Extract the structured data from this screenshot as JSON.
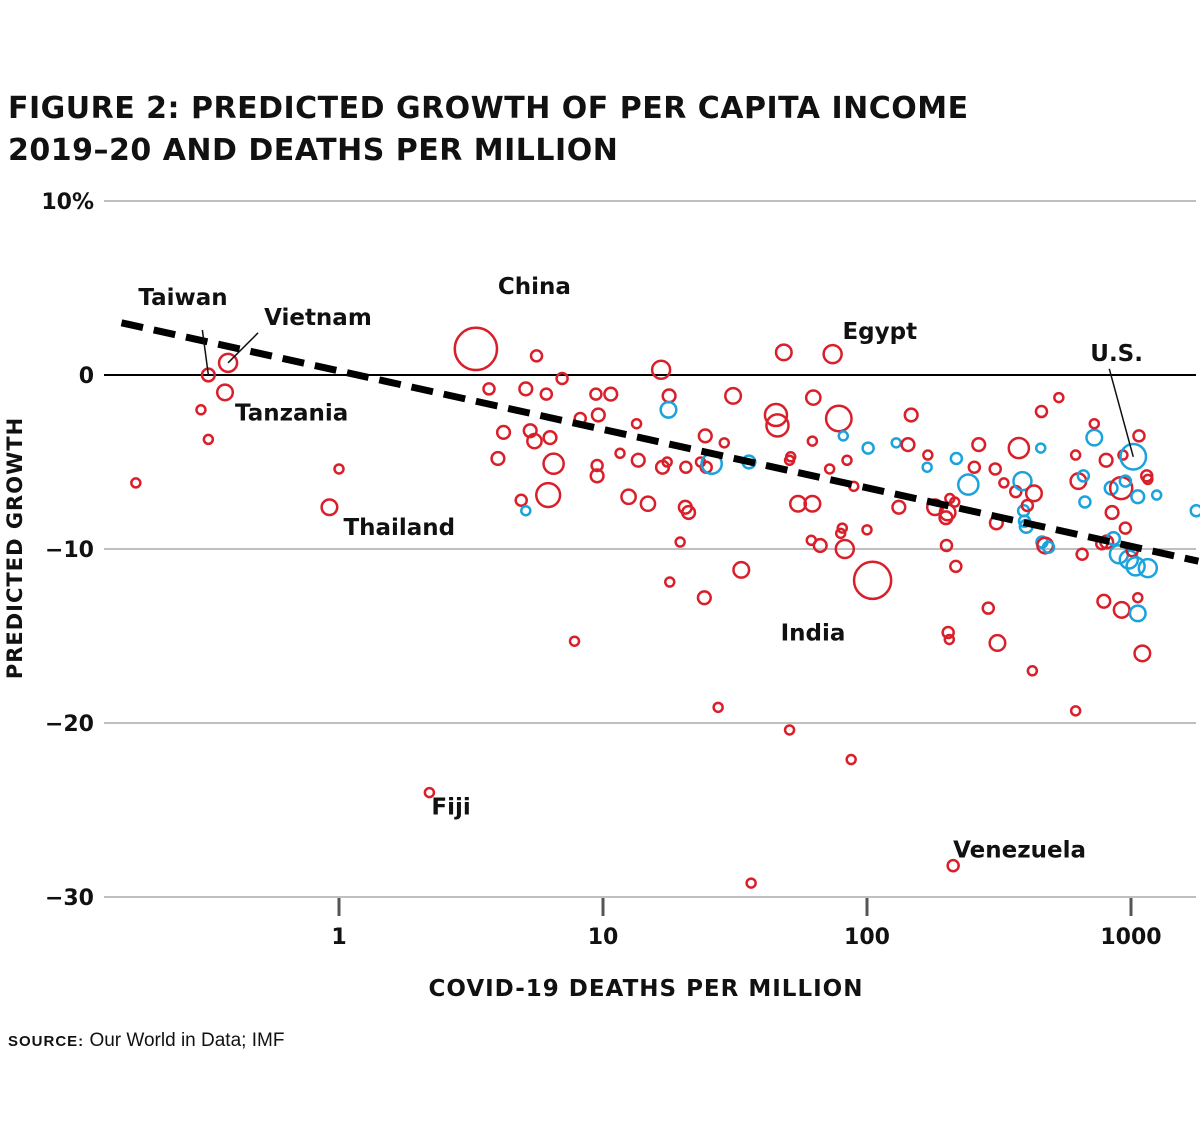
{
  "header": {
    "title_line1": "FIGURE 2: PREDICTED GROWTH OF PER CAPITA INCOME",
    "title_line2": "2019–20 AND DEATHS PER MILLION"
  },
  "footer": {
    "source_label": "SOURCE:",
    "source_text": "Our World in Data; IMF"
  },
  "chart_data": {
    "type": "scatter",
    "title": "FIGURE 2: PREDICTED GROWTH OF PER CAPITA INCOME 2019–20 AND DEATHS PER MILLION",
    "xlabel": "COVID-19 DEATHS PER MILLION",
    "ylabel": "PREDICTED GROWTH",
    "x_scale": "log",
    "xlim": [
      0.14,
      1800
    ],
    "ylim": [
      -30,
      10
    ],
    "x_ticks": [
      1,
      10,
      100,
      1000
    ],
    "x_tick_labels": [
      "1",
      "10",
      "100",
      "1000"
    ],
    "y_ticks": [
      10,
      0,
      -10,
      -20,
      -30
    ],
    "y_tick_labels": [
      "10%",
      "0",
      "−10",
      "−20",
      "−30"
    ],
    "grid": "horizontal",
    "colors": {
      "red": "#d9202a",
      "blue": "#1aa3dd",
      "trend": "#000000",
      "grid": "#999999"
    },
    "trend_line": {
      "style": "dashed",
      "from": [
        0.15,
        3.0
      ],
      "to": [
        1800,
        -10.7
      ]
    },
    "annotations": [
      {
        "label": "Taiwan",
        "x": 0.32,
        "y": 0.0
      },
      {
        "label": "Vietnam",
        "x": 0.38,
        "y": 0.7
      },
      {
        "label": "Tanzania",
        "x": 0.37,
        "y": -1.0
      },
      {
        "label": "Thailand",
        "x": 0.92,
        "y": -7.6
      },
      {
        "label": "China",
        "x": 3.3,
        "y": 1.5
      },
      {
        "label": "Fiji",
        "x": 2.2,
        "y": -24.0
      },
      {
        "label": "Egypt",
        "x": 74,
        "y": 1.2
      },
      {
        "label": "India",
        "x": 105,
        "y": -11.8
      },
      {
        "label": "Venezuela",
        "x": 212,
        "y": -28.2
      },
      {
        "label": "U.S.",
        "x": 1020,
        "y": -4.7
      }
    ],
    "points": [
      {
        "x": 0.17,
        "y": -6.2,
        "size": 1,
        "group": "red"
      },
      {
        "x": 0.3,
        "y": -2.0,
        "size": 1,
        "group": "red"
      },
      {
        "x": 0.32,
        "y": -3.7,
        "size": 1,
        "group": "red"
      },
      {
        "x": 0.32,
        "y": 0.0,
        "size": 2,
        "group": "red"
      },
      {
        "x": 0.38,
        "y": 0.7,
        "size": 4,
        "group": "red"
      },
      {
        "x": 0.37,
        "y": -1.0,
        "size": 3,
        "group": "red"
      },
      {
        "x": 1.0,
        "y": -5.4,
        "size": 1,
        "group": "red"
      },
      {
        "x": 0.92,
        "y": -7.6,
        "size": 3,
        "group": "red"
      },
      {
        "x": 2.2,
        "y": -24.0,
        "size": 1,
        "group": "red"
      },
      {
        "x": 3.3,
        "y": 1.5,
        "size": 22,
        "group": "red"
      },
      {
        "x": 3.7,
        "y": -0.8,
        "size": 1.5,
        "group": "red"
      },
      {
        "x": 4.2,
        "y": -3.3,
        "size": 2,
        "group": "red"
      },
      {
        "x": 4.0,
        "y": -4.8,
        "size": 2,
        "group": "red"
      },
      {
        "x": 4.9,
        "y": -7.2,
        "size": 1.5,
        "group": "red"
      },
      {
        "x": 5.1,
        "y": -7.8,
        "size": 1,
        "group": "blue"
      },
      {
        "x": 5.1,
        "y": -0.8,
        "size": 2,
        "group": "red"
      },
      {
        "x": 5.3,
        "y": -3.2,
        "size": 2,
        "group": "red"
      },
      {
        "x": 5.5,
        "y": -3.8,
        "size": 2.5,
        "group": "red"
      },
      {
        "x": 5.6,
        "y": 1.1,
        "size": 1.5,
        "group": "red"
      },
      {
        "x": 6.1,
        "y": -1.1,
        "size": 1.5,
        "group": "red"
      },
      {
        "x": 6.3,
        "y": -3.6,
        "size": 2,
        "group": "red"
      },
      {
        "x": 6.5,
        "y": -5.1,
        "size": 5,
        "group": "red"
      },
      {
        "x": 6.2,
        "y": -6.9,
        "size": 7,
        "group": "red"
      },
      {
        "x": 7.0,
        "y": -0.2,
        "size": 1.5,
        "group": "red"
      },
      {
        "x": 7.8,
        "y": -15.3,
        "size": 1,
        "group": "red"
      },
      {
        "x": 8.2,
        "y": -2.5,
        "size": 1.5,
        "group": "red"
      },
      {
        "x": 9.4,
        "y": -1.1,
        "size": 1.5,
        "group": "red"
      },
      {
        "x": 9.6,
        "y": -2.3,
        "size": 2,
        "group": "red"
      },
      {
        "x": 9.5,
        "y": -5.2,
        "size": 1.5,
        "group": "red"
      },
      {
        "x": 9.5,
        "y": -5.8,
        "size": 2,
        "group": "red"
      },
      {
        "x": 10.7,
        "y": -1.1,
        "size": 2,
        "group": "red"
      },
      {
        "x": 11.6,
        "y": -4.5,
        "size": 1,
        "group": "red"
      },
      {
        "x": 12.5,
        "y": -7.0,
        "size": 2.5,
        "group": "red"
      },
      {
        "x": 13.4,
        "y": -2.8,
        "size": 1,
        "group": "red"
      },
      {
        "x": 13.6,
        "y": -4.9,
        "size": 2,
        "group": "red"
      },
      {
        "x": 14.8,
        "y": -7.4,
        "size": 2.5,
        "group": "red"
      },
      {
        "x": 16.6,
        "y": 0.3,
        "size": 4,
        "group": "red"
      },
      {
        "x": 16.8,
        "y": -5.3,
        "size": 2,
        "group": "red"
      },
      {
        "x": 17.8,
        "y": -1.2,
        "size": 2,
        "group": "red"
      },
      {
        "x": 17.7,
        "y": -2.0,
        "size": 3,
        "group": "blue"
      },
      {
        "x": 17.5,
        "y": -5.0,
        "size": 1,
        "group": "red"
      },
      {
        "x": 17.9,
        "y": -11.9,
        "size": 1,
        "group": "red"
      },
      {
        "x": 19.6,
        "y": -9.6,
        "size": 1,
        "group": "red"
      },
      {
        "x": 20.5,
        "y": -7.6,
        "size": 2,
        "group": "red"
      },
      {
        "x": 20.6,
        "y": -5.3,
        "size": 1.5,
        "group": "red"
      },
      {
        "x": 21.1,
        "y": -7.9,
        "size": 2,
        "group": "red"
      },
      {
        "x": 23.4,
        "y": -5.0,
        "size": 1,
        "group": "red"
      },
      {
        "x": 24.4,
        "y": -3.5,
        "size": 2,
        "group": "red"
      },
      {
        "x": 24.6,
        "y": -5.3,
        "size": 1.5,
        "group": "red"
      },
      {
        "x": 24.2,
        "y": -12.8,
        "size": 2,
        "group": "red"
      },
      {
        "x": 25.8,
        "y": -5.1,
        "size": 5,
        "group": "blue"
      },
      {
        "x": 27.3,
        "y": -19.1,
        "size": 1,
        "group": "red"
      },
      {
        "x": 28.8,
        "y": -3.9,
        "size": 1,
        "group": "red"
      },
      {
        "x": 31.1,
        "y": -1.2,
        "size": 3,
        "group": "red"
      },
      {
        "x": 33.4,
        "y": -11.2,
        "size": 3,
        "group": "red"
      },
      {
        "x": 35.7,
        "y": -5.0,
        "size": 2,
        "group": "blue"
      },
      {
        "x": 36.4,
        "y": -29.2,
        "size": 1,
        "group": "red"
      },
      {
        "x": 45.2,
        "y": -2.3,
        "size": 6,
        "group": "red"
      },
      {
        "x": 45.8,
        "y": -2.9,
        "size": 6,
        "group": "red"
      },
      {
        "x": 48.4,
        "y": 1.3,
        "size": 3,
        "group": "red"
      },
      {
        "x": 50.9,
        "y": -4.9,
        "size": 1,
        "group": "red"
      },
      {
        "x": 51.4,
        "y": -4.7,
        "size": 1,
        "group": "red"
      },
      {
        "x": 50.9,
        "y": -20.4,
        "size": 1,
        "group": "red"
      },
      {
        "x": 54.8,
        "y": -7.4,
        "size": 3,
        "group": "red"
      },
      {
        "x": 61.5,
        "y": -9.5,
        "size": 1,
        "group": "red"
      },
      {
        "x": 62.1,
        "y": -3.8,
        "size": 1,
        "group": "red"
      },
      {
        "x": 62.6,
        "y": -1.3,
        "size": 2.5,
        "group": "red"
      },
      {
        "x": 62.1,
        "y": -7.4,
        "size": 3,
        "group": "red"
      },
      {
        "x": 66.5,
        "y": -9.8,
        "size": 2,
        "group": "red"
      },
      {
        "x": 72.2,
        "y": -5.4,
        "size": 1,
        "group": "red"
      },
      {
        "x": 74.1,
        "y": 1.2,
        "size": 4,
        "group": "red"
      },
      {
        "x": 78.2,
        "y": -2.5,
        "size": 8,
        "group": "red"
      },
      {
        "x": 79.5,
        "y": -9.1,
        "size": 1,
        "group": "red"
      },
      {
        "x": 81.3,
        "y": -3.5,
        "size": 1,
        "group": "blue"
      },
      {
        "x": 80.6,
        "y": -8.8,
        "size": 1,
        "group": "red"
      },
      {
        "x": 82.4,
        "y": -10.0,
        "size": 4,
        "group": "red"
      },
      {
        "x": 84.0,
        "y": -4.9,
        "size": 1,
        "group": "red"
      },
      {
        "x": 87.1,
        "y": -22.1,
        "size": 1,
        "group": "red"
      },
      {
        "x": 89.1,
        "y": -6.4,
        "size": 1,
        "group": "red"
      },
      {
        "x": 101,
        "y": -4.2,
        "size": 1.5,
        "group": "blue"
      },
      {
        "x": 100,
        "y": -8.9,
        "size": 1,
        "group": "red"
      },
      {
        "x": 105,
        "y": -11.8,
        "size": 17,
        "group": "red"
      },
      {
        "x": 129,
        "y": -3.9,
        "size": 1,
        "group": "blue"
      },
      {
        "x": 132,
        "y": -7.6,
        "size": 2,
        "group": "red"
      },
      {
        "x": 147,
        "y": -2.3,
        "size": 2,
        "group": "red"
      },
      {
        "x": 143,
        "y": -4.0,
        "size": 2,
        "group": "red"
      },
      {
        "x": 170,
        "y": -4.6,
        "size": 1,
        "group": "red"
      },
      {
        "x": 169,
        "y": -5.3,
        "size": 1,
        "group": "blue"
      },
      {
        "x": 181,
        "y": -7.6,
        "size": 3,
        "group": "red"
      },
      {
        "x": 199,
        "y": -8.2,
        "size": 2,
        "group": "red"
      },
      {
        "x": 200,
        "y": -9.8,
        "size": 1.5,
        "group": "red"
      },
      {
        "x": 203,
        "y": -14.8,
        "size": 1.5,
        "group": "red"
      },
      {
        "x": 205,
        "y": -15.2,
        "size": 1,
        "group": "red"
      },
      {
        "x": 202,
        "y": -7.9,
        "size": 3,
        "group": "red"
      },
      {
        "x": 206,
        "y": -7.1,
        "size": 1,
        "group": "red"
      },
      {
        "x": 215,
        "y": -7.3,
        "size": 1,
        "group": "red"
      },
      {
        "x": 212,
        "y": -28.2,
        "size": 1.5,
        "group": "red"
      },
      {
        "x": 217,
        "y": -11.0,
        "size": 1.5,
        "group": "red"
      },
      {
        "x": 218,
        "y": -4.8,
        "size": 1.5,
        "group": "blue"
      },
      {
        "x": 242,
        "y": -6.3,
        "size": 5,
        "group": "blue"
      },
      {
        "x": 255,
        "y": -5.3,
        "size": 1.5,
        "group": "red"
      },
      {
        "x": 265,
        "y": -4.0,
        "size": 2,
        "group": "red"
      },
      {
        "x": 288,
        "y": -13.4,
        "size": 1.5,
        "group": "red"
      },
      {
        "x": 306,
        "y": -5.4,
        "size": 1.5,
        "group": "red"
      },
      {
        "x": 309,
        "y": -8.5,
        "size": 2,
        "group": "red"
      },
      {
        "x": 312,
        "y": -15.4,
        "size": 3,
        "group": "red"
      },
      {
        "x": 330,
        "y": -6.2,
        "size": 1,
        "group": "red"
      },
      {
        "x": 366,
        "y": -6.7,
        "size": 1.5,
        "group": "red"
      },
      {
        "x": 376,
        "y": -4.2,
        "size": 5,
        "group": "red"
      },
      {
        "x": 388,
        "y": -6.1,
        "size": 4,
        "group": "blue"
      },
      {
        "x": 392,
        "y": -7.8,
        "size": 1.5,
        "group": "blue"
      },
      {
        "x": 395,
        "y": -8.4,
        "size": 1.5,
        "group": "blue"
      },
      {
        "x": 401,
        "y": -8.7,
        "size": 2,
        "group": "blue"
      },
      {
        "x": 405,
        "y": -7.5,
        "size": 1.5,
        "group": "red"
      },
      {
        "x": 429,
        "y": -6.8,
        "size": 3,
        "group": "red"
      },
      {
        "x": 423,
        "y": -17.0,
        "size": 1,
        "group": "red"
      },
      {
        "x": 455,
        "y": -4.2,
        "size": 1,
        "group": "blue"
      },
      {
        "x": 458,
        "y": -2.1,
        "size": 1.5,
        "group": "red"
      },
      {
        "x": 460,
        "y": -9.6,
        "size": 1.5,
        "group": "blue"
      },
      {
        "x": 473,
        "y": -9.8,
        "size": 3,
        "group": "red"
      },
      {
        "x": 487,
        "y": -9.9,
        "size": 1.5,
        "group": "blue"
      },
      {
        "x": 533,
        "y": -1.3,
        "size": 1,
        "group": "red"
      },
      {
        "x": 617,
        "y": -19.3,
        "size": 1,
        "group": "red"
      },
      {
        "x": 617,
        "y": -4.6,
        "size": 1,
        "group": "red"
      },
      {
        "x": 632,
        "y": -6.1,
        "size": 3,
        "group": "red"
      },
      {
        "x": 653,
        "y": -10.3,
        "size": 1.5,
        "group": "red"
      },
      {
        "x": 660,
        "y": -5.8,
        "size": 1.5,
        "group": "blue"
      },
      {
        "x": 669,
        "y": -7.3,
        "size": 1.5,
        "group": "blue"
      },
      {
        "x": 726,
        "y": -3.6,
        "size": 3,
        "group": "blue"
      },
      {
        "x": 726,
        "y": -2.8,
        "size": 1,
        "group": "red"
      },
      {
        "x": 775,
        "y": -9.7,
        "size": 1.5,
        "group": "red"
      },
      {
        "x": 789,
        "y": -13.0,
        "size": 2,
        "group": "red"
      },
      {
        "x": 805,
        "y": -4.9,
        "size": 2,
        "group": "red"
      },
      {
        "x": 809,
        "y": -9.6,
        "size": 2,
        "group": "red"
      },
      {
        "x": 841,
        "y": -6.5,
        "size": 2,
        "group": "blue"
      },
      {
        "x": 848,
        "y": -7.9,
        "size": 2,
        "group": "red"
      },
      {
        "x": 858,
        "y": -9.4,
        "size": 2,
        "group": "blue"
      },
      {
        "x": 900,
        "y": -10.3,
        "size": 4,
        "group": "blue"
      },
      {
        "x": 918,
        "y": -6.5,
        "size": 6,
        "group": "red"
      },
      {
        "x": 922,
        "y": -13.5,
        "size": 3,
        "group": "red"
      },
      {
        "x": 932,
        "y": -4.6,
        "size": 1,
        "group": "red"
      },
      {
        "x": 952,
        "y": -8.8,
        "size": 1.5,
        "group": "red"
      },
      {
        "x": 952,
        "y": -6.1,
        "size": 1.5,
        "group": "blue"
      },
      {
        "x": 981,
        "y": -10.6,
        "size": 4,
        "group": "blue"
      },
      {
        "x": 1010,
        "y": -10.1,
        "size": 1.5,
        "group": "red"
      },
      {
        "x": 1020,
        "y": -4.7,
        "size": 8,
        "group": "blue"
      },
      {
        "x": 1041,
        "y": -11.0,
        "size": 4,
        "group": "blue"
      },
      {
        "x": 1061,
        "y": -13.7,
        "size": 3,
        "group": "blue"
      },
      {
        "x": 1061,
        "y": -7.0,
        "size": 2,
        "group": "blue"
      },
      {
        "x": 1061,
        "y": -12.8,
        "size": 1,
        "group": "red"
      },
      {
        "x": 1072,
        "y": -3.5,
        "size": 1.5,
        "group": "red"
      },
      {
        "x": 1104,
        "y": -16.0,
        "size": 3,
        "group": "red"
      },
      {
        "x": 1147,
        "y": -5.8,
        "size": 1.5,
        "group": "red"
      },
      {
        "x": 1158,
        "y": -11.1,
        "size": 4,
        "group": "blue"
      },
      {
        "x": 1158,
        "y": -6.0,
        "size": 1,
        "group": "red"
      },
      {
        "x": 1251,
        "y": -6.9,
        "size": 1,
        "group": "blue"
      },
      {
        "x": 1767,
        "y": -7.8,
        "size": 1.5,
        "group": "blue"
      }
    ]
  }
}
